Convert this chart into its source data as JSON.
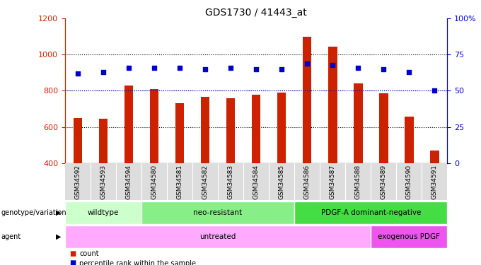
{
  "title": "GDS1730 / 41443_at",
  "samples": [
    "GSM34592",
    "GSM34593",
    "GSM34594",
    "GSM34580",
    "GSM34581",
    "GSM34582",
    "GSM34583",
    "GSM34584",
    "GSM34585",
    "GSM34586",
    "GSM34587",
    "GSM34588",
    "GSM34589",
    "GSM34590",
    "GSM34591"
  ],
  "counts": [
    650,
    645,
    830,
    810,
    730,
    765,
    760,
    780,
    790,
    1100,
    1045,
    840,
    785,
    655,
    470
  ],
  "percentiles": [
    62,
    63,
    66,
    66,
    66,
    65,
    66,
    65,
    65,
    69,
    68,
    66,
    65,
    63,
    50
  ],
  "ylim_left": [
    400,
    1200
  ],
  "ylim_right": [
    0,
    100
  ],
  "yticks_left": [
    400,
    600,
    800,
    1000,
    1200
  ],
  "yticks_right": [
    0,
    25,
    50,
    75,
    100
  ],
  "bar_color": "#CC2200",
  "dot_color": "#0000CC",
  "bg_color": "#FFFFFF",
  "genotype_groups": [
    {
      "label": "wildtype",
      "start": 0,
      "end": 3,
      "color": "#CCFFCC"
    },
    {
      "label": "neo-resistant",
      "start": 3,
      "end": 9,
      "color": "#88EE88"
    },
    {
      "label": "PDGF-A dominant-negative",
      "start": 9,
      "end": 15,
      "color": "#44DD44"
    }
  ],
  "agent_groups": [
    {
      "label": "untreated",
      "start": 0,
      "end": 12,
      "color": "#FFAAFF"
    },
    {
      "label": "exogenous PDGF",
      "start": 12,
      "end": 15,
      "color": "#EE55EE"
    }
  ],
  "left_color": "#CC2200",
  "right_color": "#0000CC"
}
